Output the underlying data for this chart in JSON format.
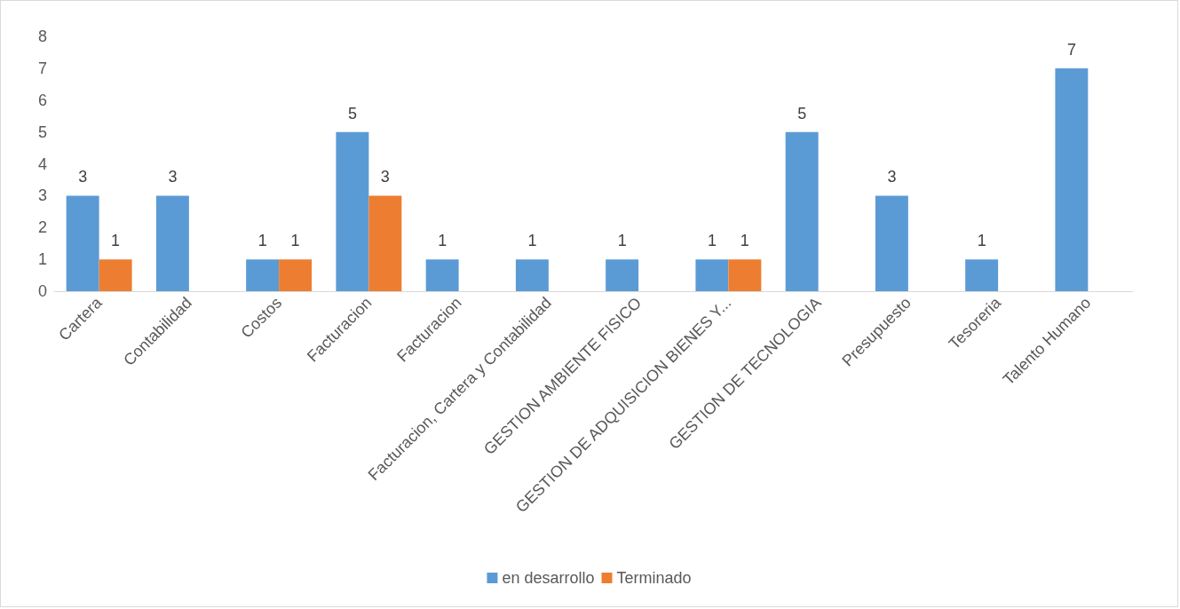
{
  "chart_data": {
    "type": "bar",
    "categories": [
      "Cartera",
      "Contabilidad",
      "Costos",
      "Facturacion",
      "Facturacion",
      "Facturacion, Cartera y Contabilidad",
      "GESTION AMBIENTE FISICO",
      "GESTION DE ADQUISICION BIENES Y...",
      "GESTION DE TECNOLOGIA",
      "Presupuesto",
      "Tesoreria",
      "Talento Humano"
    ],
    "series": [
      {
        "name": "en desarrollo",
        "color": "#5b9bd5",
        "values": [
          3,
          3,
          1,
          5,
          1,
          1,
          1,
          1,
          5,
          3,
          1,
          7
        ]
      },
      {
        "name": "Terminado",
        "color": "#ed7d31",
        "values": [
          1,
          null,
          1,
          3,
          null,
          null,
          null,
          1,
          null,
          null,
          null,
          null
        ]
      }
    ],
    "ylim": [
      0,
      8
    ],
    "yticks": [
      0,
      1,
      2,
      3,
      4,
      5,
      6,
      7,
      8
    ],
    "grid": false,
    "legend": "bottom",
    "data_labels": true
  }
}
